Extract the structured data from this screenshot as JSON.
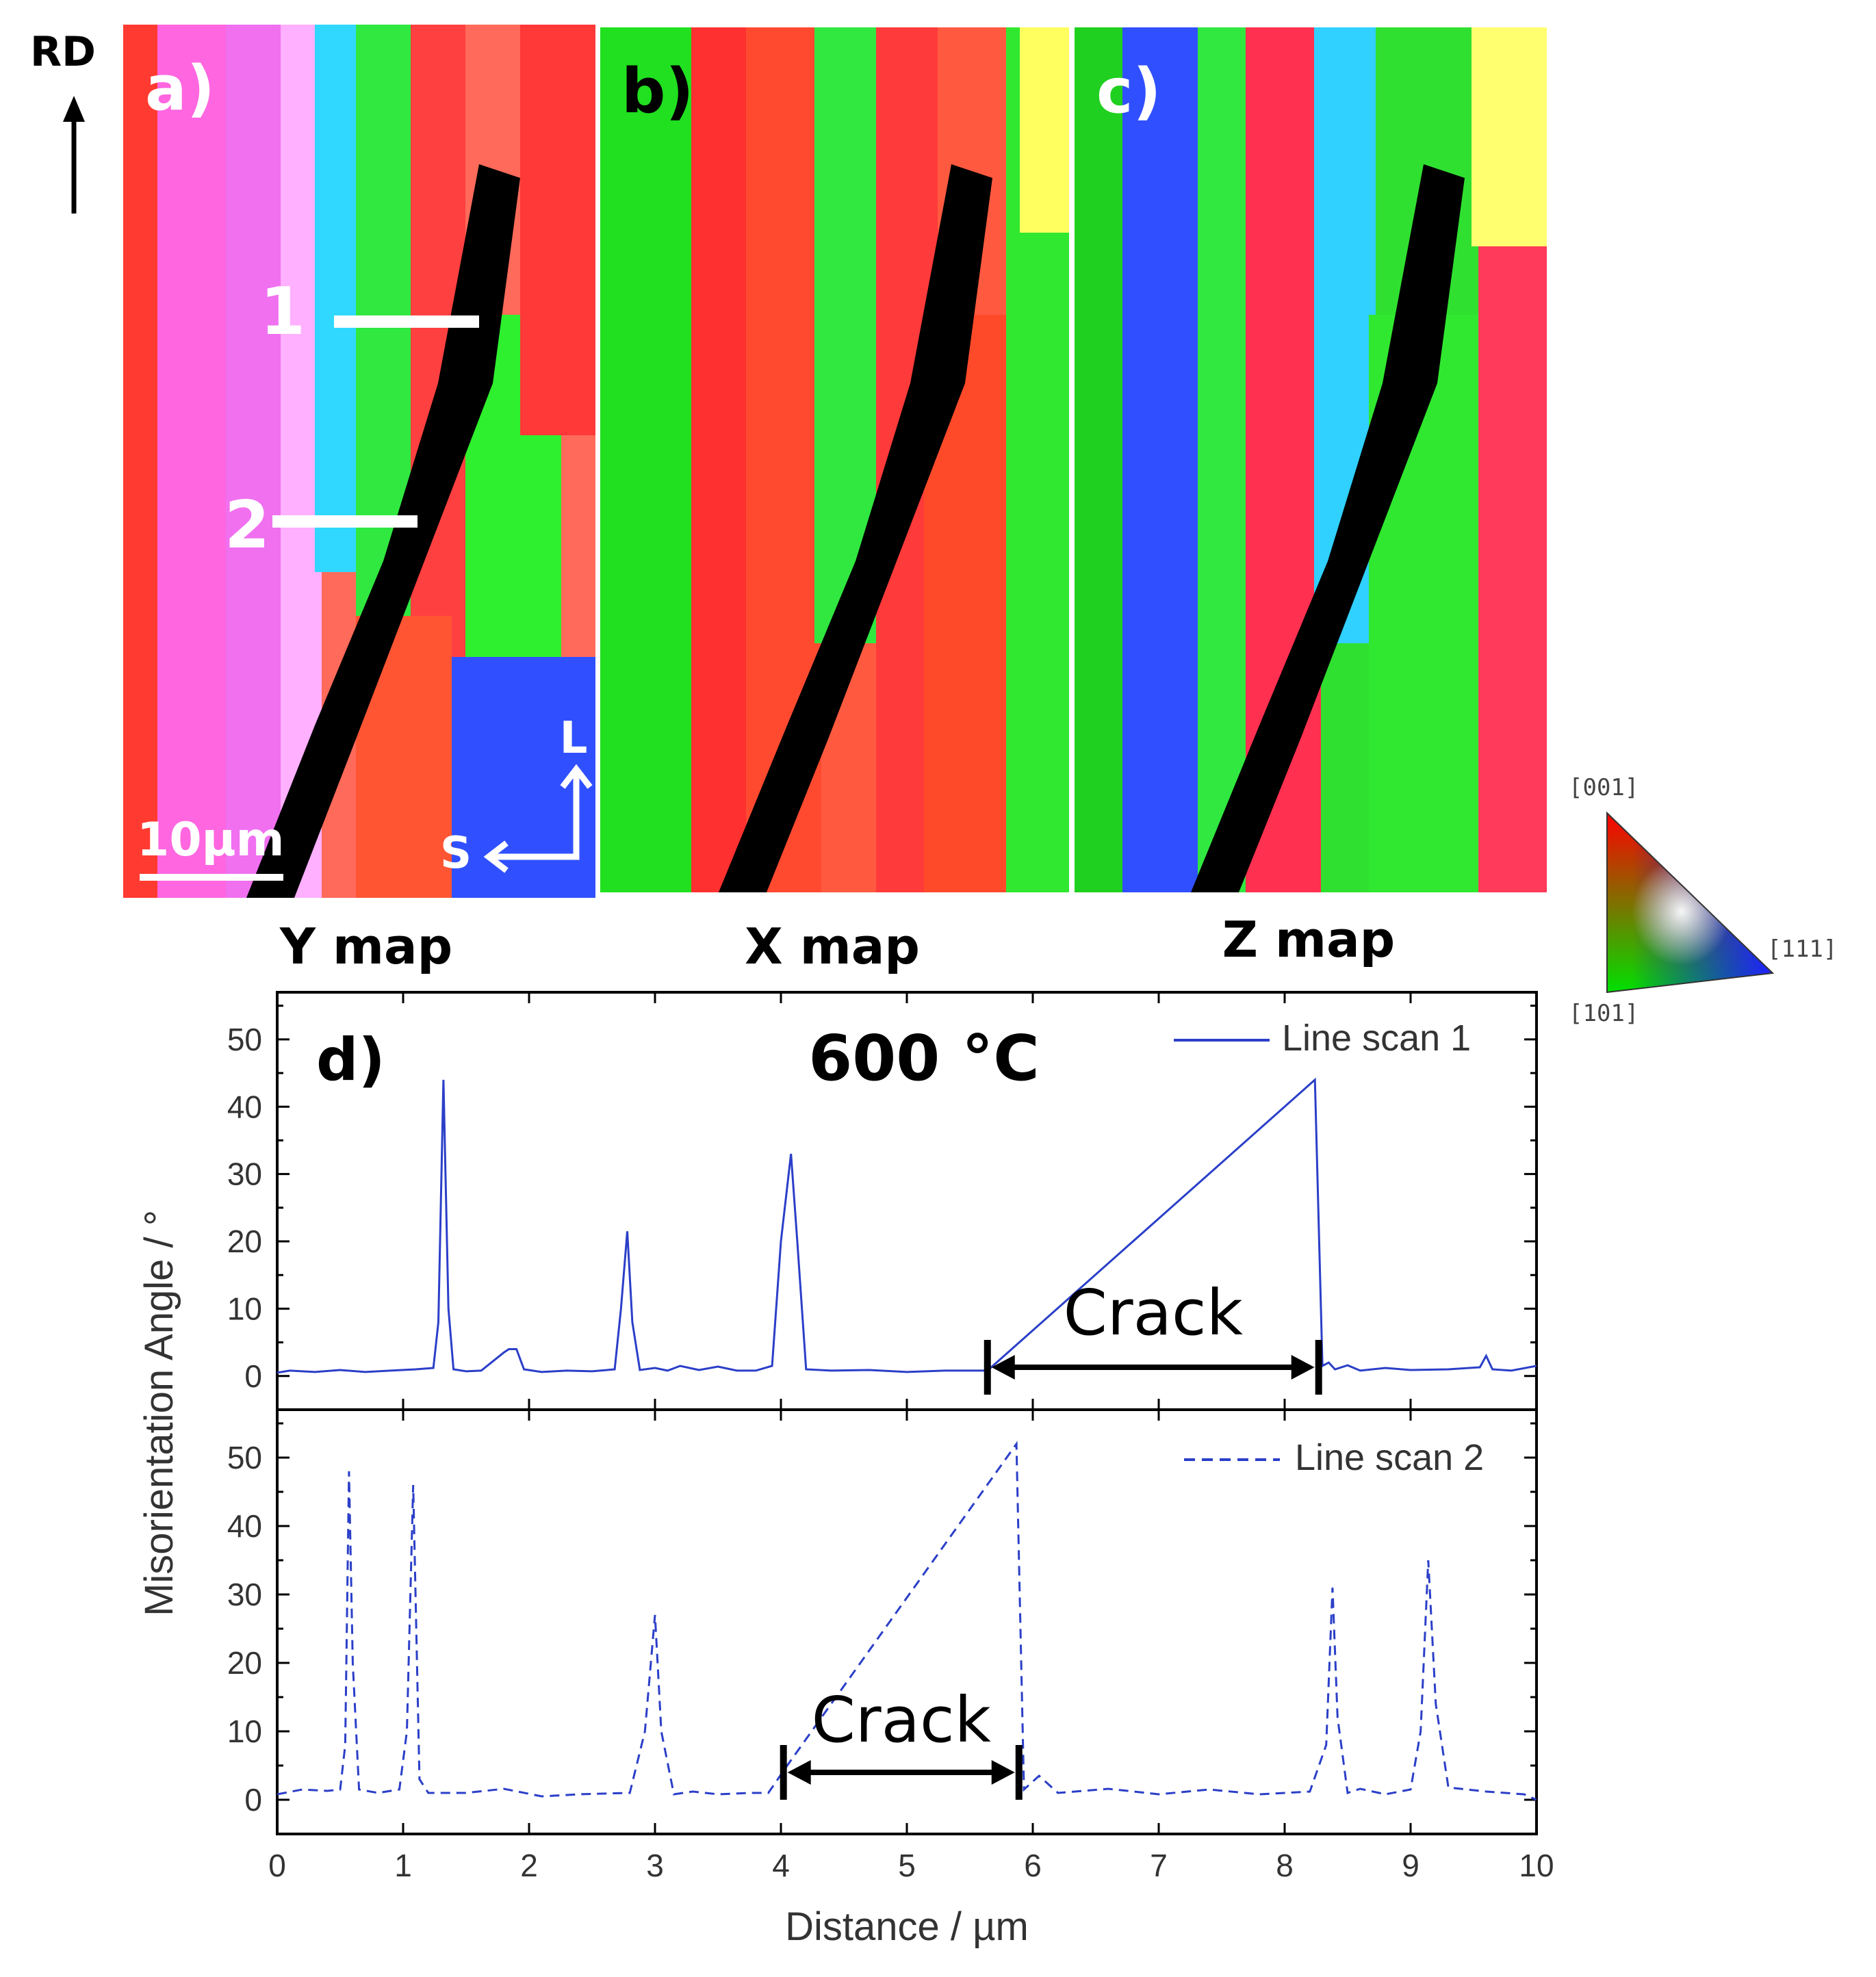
{
  "figure": {
    "rd_label": "RD",
    "panels": [
      {
        "label": "a)",
        "caption": "Y map"
      },
      {
        "label": "b)",
        "caption": "X map"
      },
      {
        "label": "c)",
        "caption": "Z map"
      }
    ],
    "line_labels": [
      "1",
      "2"
    ],
    "scale_bar": "10µm",
    "axes_l": "L",
    "axes_s": "S",
    "ipf_key": {
      "top": "[001]",
      "right": "[111]",
      "bottom": "[101]"
    },
    "colors": {
      "line": "#2b3fc8",
      "annot": "#000000"
    }
  },
  "chart_data": {
    "type": "line",
    "panel_label": "d)",
    "title": "600 °C",
    "xlabel": "Distance / µm",
    "ylabel": "Misorientation Angle / °",
    "xlim": [
      0,
      10
    ],
    "ylim": [
      -5,
      57
    ],
    "x_ticks": [
      0,
      1,
      2,
      3,
      4,
      5,
      6,
      7,
      8,
      9,
      10
    ],
    "y_ticks": [
      0,
      10,
      20,
      30,
      40,
      50
    ],
    "series": [
      {
        "name": "Line scan 1",
        "style": "solid",
        "x": [
          0,
          0.1,
          0.3,
          0.5,
          0.7,
          0.9,
          1.1,
          1.24,
          1.28,
          1.32,
          1.36,
          1.4,
          1.5,
          1.62,
          1.8,
          1.84,
          1.9,
          1.96,
          2.1,
          2.3,
          2.5,
          2.68,
          2.73,
          2.78,
          2.82,
          2.88,
          3.0,
          3.1,
          3.2,
          3.35,
          3.5,
          3.65,
          3.8,
          3.93,
          4.0,
          4.08,
          4.13,
          4.2,
          4.4,
          4.7,
          5.0,
          5.3,
          5.64,
          8.24,
          8.3,
          8.35,
          8.4,
          8.5,
          8.6,
          8.8,
          9.0,
          9.3,
          9.55,
          9.6,
          9.65,
          9.8,
          10
        ],
        "values": [
          0.5,
          0.8,
          0.6,
          0.9,
          0.6,
          0.8,
          1.0,
          1.2,
          8,
          44,
          10,
          1,
          0.7,
          0.8,
          3.5,
          4,
          4,
          1,
          0.6,
          0.8,
          0.7,
          1,
          10,
          21.5,
          8,
          0.9,
          1.2,
          0.8,
          1.5,
          0.9,
          1.4,
          0.8,
          0.8,
          1.5,
          20,
          33,
          20,
          1,
          0.8,
          0.9,
          0.6,
          0.8,
          0.8,
          44,
          1.5,
          2,
          1,
          1.6,
          0.8,
          1.2,
          0.9,
          1.0,
          1.3,
          3,
          1,
          0.8,
          1.5
        ]
      },
      {
        "name": "Line scan 2",
        "style": "dashed",
        "x": [
          0,
          0.2,
          0.4,
          0.5,
          0.54,
          0.57,
          0.6,
          0.65,
          0.8,
          0.97,
          1.03,
          1.08,
          1.13,
          1.2,
          1.5,
          1.8,
          2.1,
          2.4,
          2.8,
          2.92,
          3.0,
          3.05,
          3.15,
          3.3,
          3.5,
          3.75,
          3.9,
          4.05,
          5.87,
          5.93,
          6.05,
          6.2,
          6.6,
          7.0,
          7.4,
          7.8,
          8.2,
          8.33,
          8.38,
          8.42,
          8.5,
          8.6,
          8.8,
          9.0,
          9.08,
          9.14,
          9.2,
          9.3,
          9.6,
          9.9,
          10
        ],
        "values": [
          0.8,
          1.5,
          1.3,
          1.5,
          8,
          48,
          20,
          1.5,
          1.0,
          1.5,
          10,
          46,
          3,
          1.0,
          1.0,
          1.6,
          0.5,
          0.8,
          1,
          10,
          27,
          10,
          0.8,
          1.2,
          0.8,
          1.0,
          1.0,
          5,
          52,
          1.5,
          3.5,
          1.0,
          1.6,
          0.8,
          1.5,
          0.8,
          1.2,
          8,
          31,
          12,
          1,
          1.6,
          0.8,
          1.5,
          10,
          35,
          14,
          1.8,
          1.2,
          0.8,
          0
        ]
      }
    ],
    "annotations": [
      {
        "text": "Crack",
        "x_start": 5.64,
        "x_end": 8.27
      },
      {
        "text": "Crack",
        "x_start": 4.02,
        "x_end": 5.89
      }
    ]
  }
}
